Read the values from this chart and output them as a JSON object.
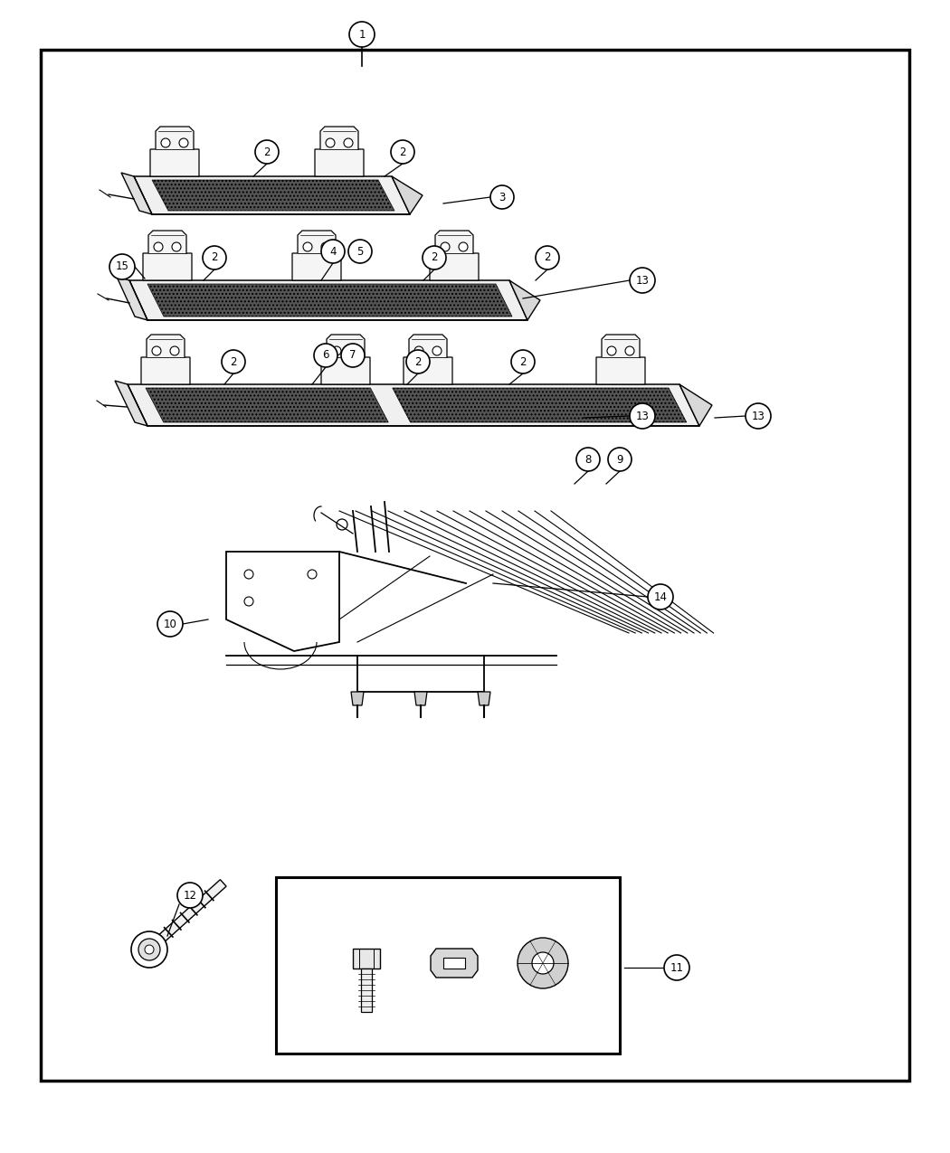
{
  "bg_color": "#ffffff",
  "border_color": "#000000",
  "line_color": "#000000",
  "fig_width": 10.5,
  "fig_height": 12.75,
  "dpi": 100
}
